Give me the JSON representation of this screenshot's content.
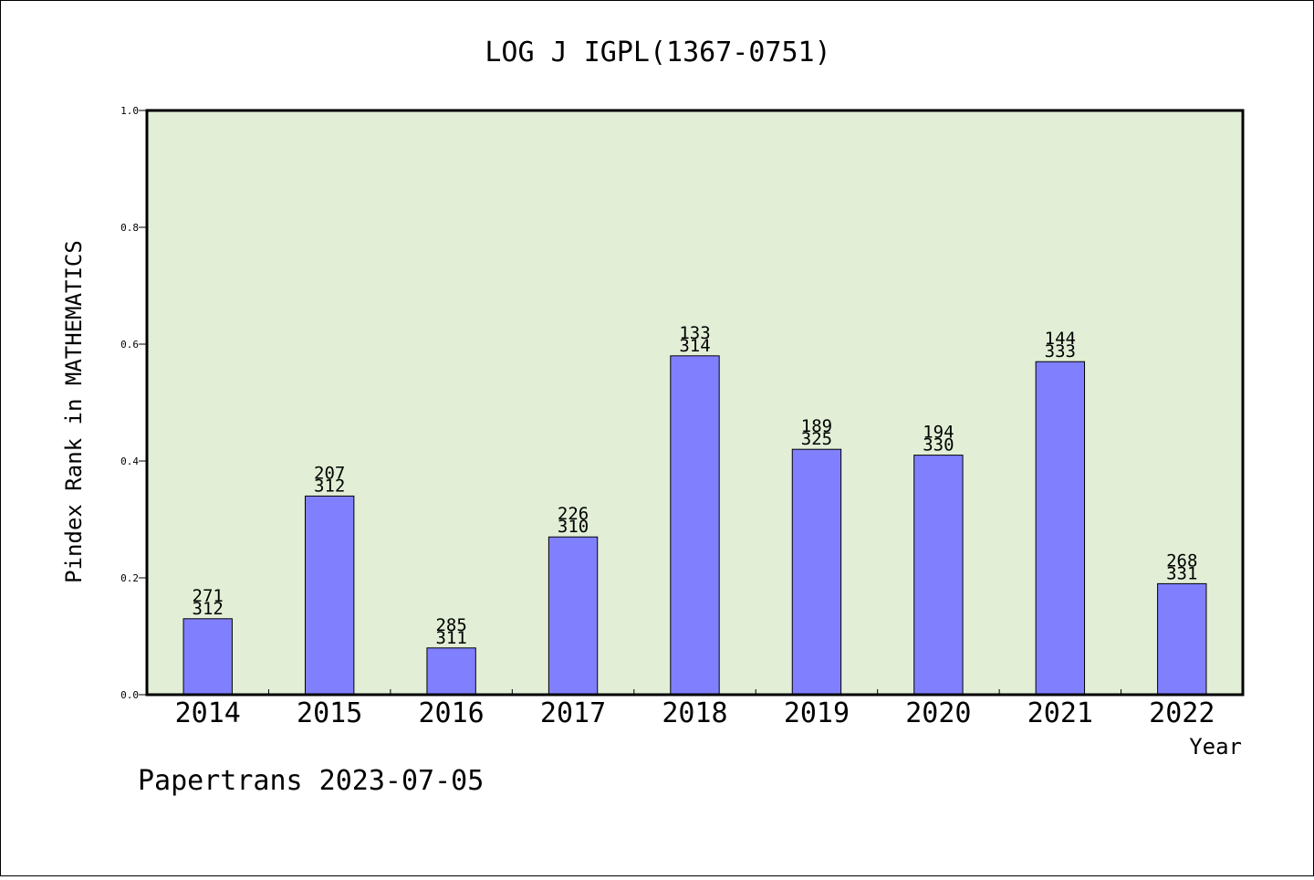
{
  "chart_data": {
    "type": "bar",
    "title": "LOG J IGPL(1367-0751)",
    "xlabel": "Year",
    "ylabel": "Pindex Rank in MATHEMATICS",
    "ylim": [
      0,
      1.0
    ],
    "yticks": [
      "0.0",
      "0.2",
      "0.4",
      "0.6",
      "0.8",
      "1.0"
    ],
    "categories": [
      "2014",
      "2015",
      "2016",
      "2017",
      "2018",
      "2019",
      "2020",
      "2021",
      "2022"
    ],
    "values": [
      0.13,
      0.34,
      0.08,
      0.27,
      0.58,
      0.42,
      0.41,
      0.57,
      0.19
    ],
    "labels_top": [
      "271",
      "207",
      "285",
      "226",
      "133",
      "189",
      "194",
      "144",
      "268"
    ],
    "labels_bottom": [
      "312",
      "312",
      "311",
      "310",
      "314",
      "325",
      "330",
      "333",
      "331"
    ],
    "grid": false,
    "colors": {
      "plot_background": "#e2efd6",
      "bar_fill": "#8080ff",
      "bar_stroke": "#000000"
    }
  },
  "footer": {
    "text": "Papertrans 2023-07-05"
  }
}
